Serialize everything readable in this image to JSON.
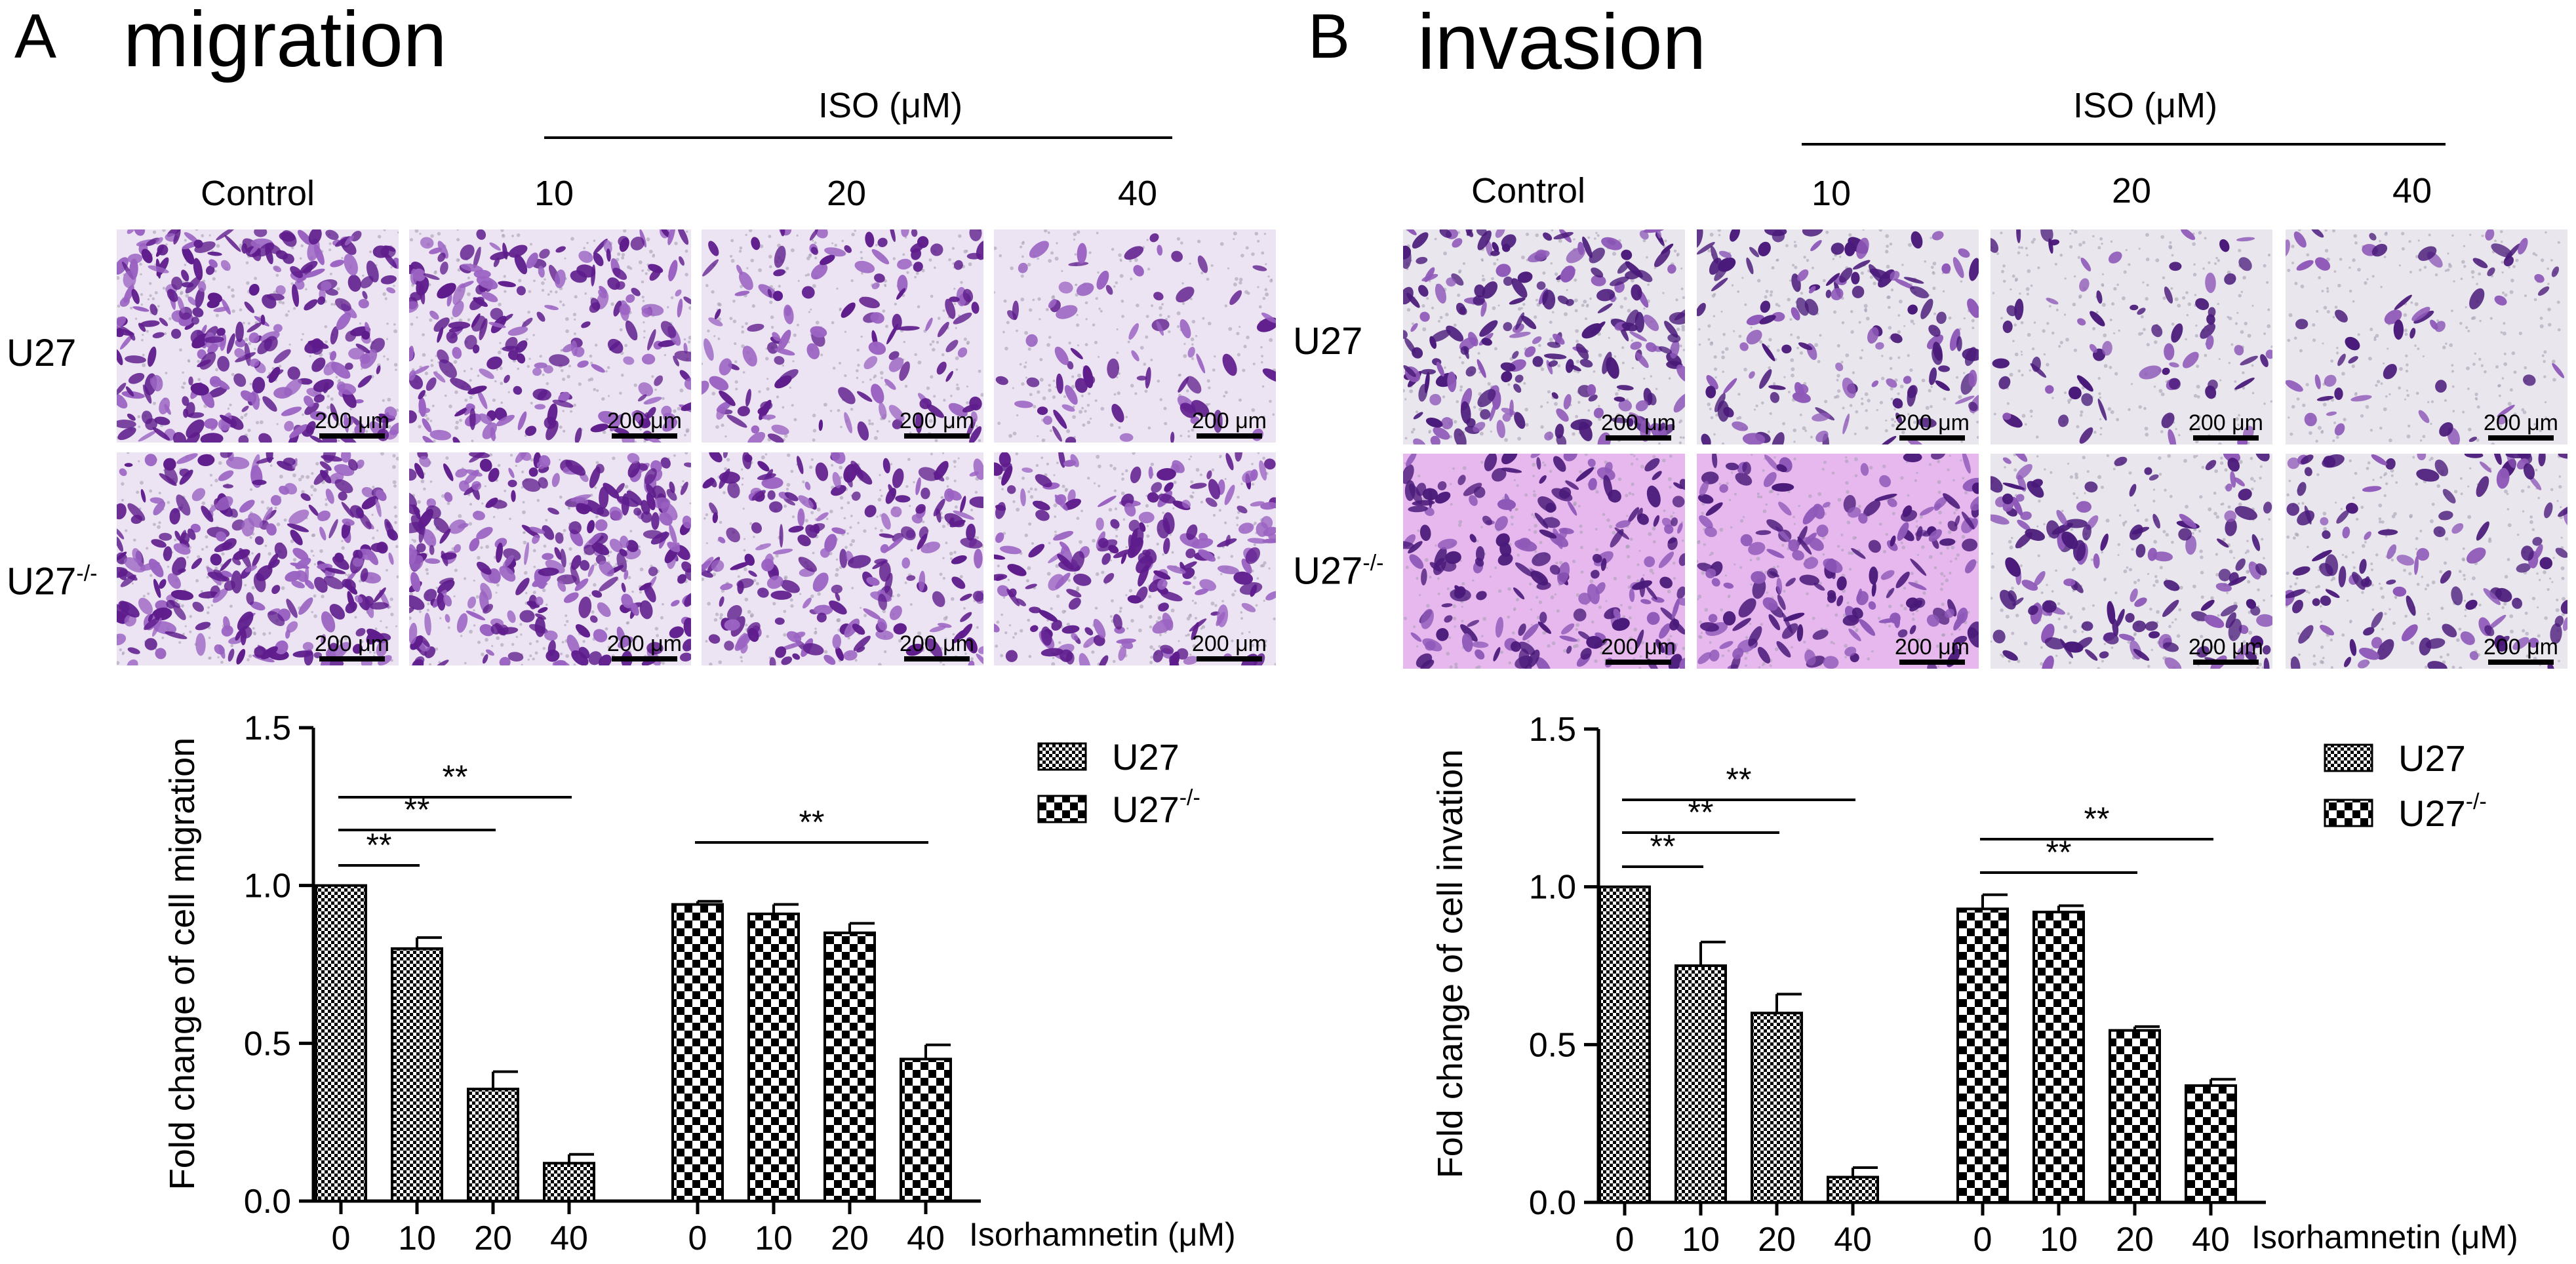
{
  "panels": [
    {
      "id": "A",
      "letter": "A",
      "title": "migration",
      "iso_label": "ISO (μM)",
      "columns": [
        "Control",
        "10",
        "20",
        "40"
      ],
      "rows": [
        {
          "label": "U27",
          "sup": ""
        },
        {
          "label": "U27",
          "sup": "-/-"
        }
      ],
      "scale_bar": "200 μm",
      "colors": {
        "bg": "#ece4f2",
        "cell": "#5e1c8c",
        "cell_light": "#9a62c2",
        "bg2": "#e6d6ef"
      },
      "density": [
        [
          95,
          70,
          42,
          22
        ],
        [
          88,
          90,
          66,
          64
        ]
      ]
    },
    {
      "id": "B",
      "letter": "B",
      "title": "invasion",
      "iso_label": "ISO (μM)",
      "columns": [
        "Control",
        "10",
        "20",
        "40"
      ],
      "rows": [
        {
          "label": "U27",
          "sup": ""
        },
        {
          "label": "U27",
          "sup": "-/-"
        }
      ],
      "scale_bar": "200 μm",
      "colors": {
        "bg": "#e9e6ee",
        "cell": "#4a1a7a",
        "cell_light": "#8e58b8",
        "bg2": "#e7b8ee"
      },
      "density": [
        [
          70,
          40,
          22,
          18
        ],
        [
          60,
          55,
          45,
          38
        ]
      ]
    }
  ],
  "chart_data": [
    {
      "type": "bar",
      "panel": "A",
      "ylabel": "Fold change of cell migration",
      "xlabel": "Isorhamnetin (μM)",
      "ylim": [
        0,
        1.5
      ],
      "yticks": [
        "0.0",
        "0.5",
        "1.0",
        "1.5"
      ],
      "categories": [
        "0",
        "10",
        "20",
        "40"
      ],
      "series": [
        {
          "name": "U27",
          "sup": "",
          "pattern": "fine-check",
          "values": [
            1.0,
            0.8,
            0.355,
            0.12
          ],
          "errors": [
            0.0,
            0.035,
            0.055,
            0.028
          ]
        },
        {
          "name": "U27",
          "sup": "-/-",
          "pattern": "coarse-check",
          "values": [
            0.94,
            0.91,
            0.85,
            0.45
          ],
          "errors": [
            0.01,
            0.03,
            0.03,
            0.045
          ]
        }
      ],
      "significance": [
        {
          "series": 0,
          "from": 0,
          "to": 1,
          "label": "**"
        },
        {
          "series": 0,
          "from": 0,
          "to": 2,
          "label": "**"
        },
        {
          "series": 0,
          "from": 0,
          "to": 3,
          "label": "**"
        },
        {
          "series": 1,
          "from": 0,
          "to": 3,
          "label": "**"
        }
      ],
      "legend_position": "top-right"
    },
    {
      "type": "bar",
      "panel": "B",
      "ylabel": "Fold change of cell invation",
      "xlabel": "Isorhamnetin (μM)",
      "ylim": [
        0,
        1.5
      ],
      "yticks": [
        "0.0",
        "0.5",
        "1.0",
        "1.5"
      ],
      "categories": [
        "0",
        "10",
        "20",
        "40"
      ],
      "series": [
        {
          "name": "U27",
          "sup": "",
          "pattern": "fine-check",
          "values": [
            1.0,
            0.75,
            0.6,
            0.08
          ],
          "errors": [
            0.0,
            0.075,
            0.06,
            0.03
          ]
        },
        {
          "name": "U27",
          "sup": "-/-",
          "pattern": "coarse-check",
          "values": [
            0.93,
            0.92,
            0.545,
            0.37
          ],
          "errors": [
            0.045,
            0.02,
            0.012,
            0.02
          ]
        }
      ],
      "significance": [
        {
          "series": 0,
          "from": 0,
          "to": 1,
          "label": "**"
        },
        {
          "series": 0,
          "from": 0,
          "to": 2,
          "label": "**"
        },
        {
          "series": 0,
          "from": 0,
          "to": 3,
          "label": "**"
        },
        {
          "series": 1,
          "from": 0,
          "to": 2,
          "label": "**"
        },
        {
          "series": 1,
          "from": 0,
          "to": 3,
          "label": "**"
        }
      ],
      "legend_position": "top-right"
    }
  ]
}
